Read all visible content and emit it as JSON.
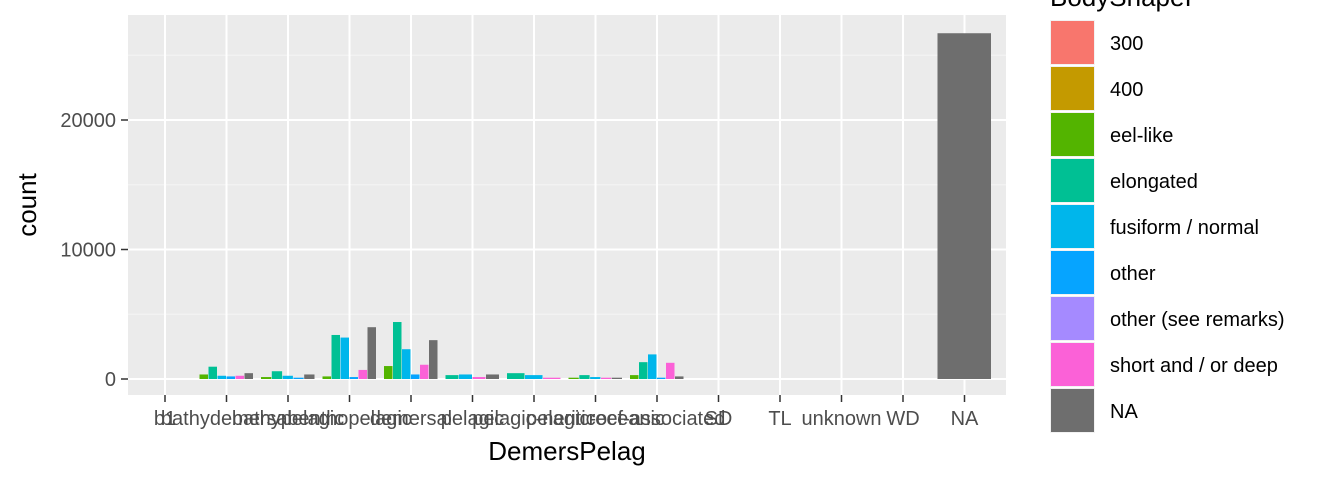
{
  "chart_data": {
    "type": "bar",
    "xlabel": "DemersPelag",
    "ylabel": "count",
    "ylim": [
      -1000,
      27500
    ],
    "y_ticks": [
      0,
      10000,
      20000
    ],
    "y_tick_labels": [
      "0",
      "10000",
      "20000"
    ],
    "categories": [
      "b1",
      "bathydemersal",
      "bathypelagic",
      "benthopelagic",
      "demersal",
      "pelagic",
      "pelagic-neritic",
      "pelagic-oceanic",
      "reef-associated",
      "SD",
      "TL",
      "unknown",
      "WD",
      "NA"
    ],
    "legend_title": "BodyShapeI",
    "legend_position": "right",
    "grid": true,
    "series": [
      {
        "name": "300",
        "color": "#F8766D",
        "values": [
          0,
          0,
          0,
          0,
          0,
          0,
          0,
          0,
          0,
          0,
          0,
          0,
          0,
          0
        ]
      },
      {
        "name": "400",
        "color": "#C49A00",
        "values": [
          0,
          0,
          0,
          0,
          0,
          0,
          0,
          0,
          0,
          0,
          0,
          0,
          0,
          0
        ]
      },
      {
        "name": "eel-like",
        "color": "#53B400",
        "values": [
          0,
          350,
          150,
          200,
          1000,
          0,
          0,
          100,
          300,
          0,
          0,
          0,
          0,
          0
        ]
      },
      {
        "name": "elongated",
        "color": "#00C094",
        "values": [
          0,
          950,
          600,
          3400,
          4400,
          300,
          450,
          300,
          1300,
          0,
          0,
          0,
          0,
          0
        ]
      },
      {
        "name": "fusiform / normal",
        "color": "#00B6EB",
        "values": [
          0,
          250,
          250,
          3200,
          2300,
          350,
          300,
          150,
          1900,
          0,
          0,
          0,
          0,
          0
        ]
      },
      {
        "name": "other",
        "color": "#06A4FF",
        "values": [
          0,
          200,
          100,
          150,
          350,
          0,
          0,
          0,
          100,
          0,
          0,
          0,
          0,
          0
        ]
      },
      {
        "name": "other (see remarks)",
        "color": "#A58AFF",
        "values": [
          0,
          0,
          0,
          0,
          0,
          0,
          0,
          0,
          0,
          0,
          0,
          0,
          0,
          0
        ]
      },
      {
        "name": "short and / or deep",
        "color": "#FB61D7",
        "values": [
          0,
          250,
          0,
          700,
          1100,
          150,
          100,
          100,
          1250,
          0,
          0,
          0,
          0,
          0
        ]
      },
      {
        "name": "NA",
        "color": "#6E6E6E",
        "values": [
          0,
          450,
          350,
          4000,
          3000,
          350,
          0,
          100,
          200,
          0,
          0,
          0,
          0,
          26700
        ]
      }
    ]
  }
}
